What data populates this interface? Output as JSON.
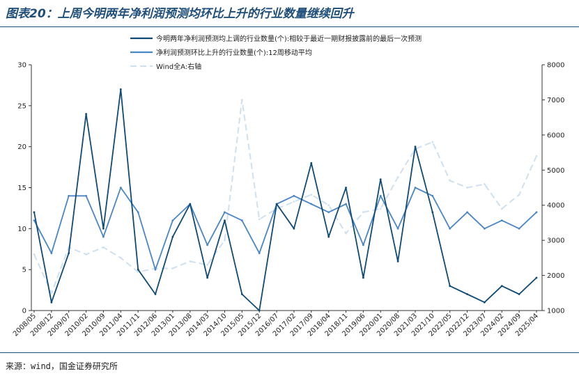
{
  "header": {
    "title": "图表20：上周今明两年净利润预测均环比上升的行业数量继续回升"
  },
  "footer": {
    "source": "来源：wind，国金证券研究所"
  },
  "colors": {
    "series1": "#0e4a75",
    "series2": "#4a86c5",
    "series3": "#cfe0ef",
    "title": "#1f4e79"
  },
  "chart_data": {
    "type": "line",
    "title": "",
    "xlabel": "",
    "ylabel": "",
    "y_left": {
      "lim": [
        0,
        30
      ],
      "ticks": [
        "0",
        "5",
        "10",
        "15",
        "20",
        "25",
        "30"
      ]
    },
    "y_right": {
      "lim": [
        1000,
        8000
      ],
      "ticks": [
        "1000",
        "2000",
        "3000",
        "4000",
        "5000",
        "6000",
        "7000",
        "8000"
      ]
    },
    "x_ticks": [
      "2008/05",
      "2008/12",
      "2009/07",
      "2010/02",
      "2010/09",
      "2011/04",
      "2011/11",
      "2012/06",
      "2013/01",
      "2013/08",
      "2014/03",
      "2014/10",
      "2015/05",
      "2015/12",
      "2016/07",
      "2017/02",
      "2017/09",
      "2018/04",
      "2018/11",
      "2019/06",
      "2020/01",
      "2020/08",
      "2021/03",
      "2021/10",
      "2022/05",
      "2022/12",
      "2023/07",
      "2024/02",
      "2024/09",
      "2025/04"
    ],
    "legend": {
      "placement": "top",
      "grid": false
    },
    "series": [
      {
        "name": "今明两年净利润预测均上调的行业数量(个):相较于最近一期财报披露前的最后一次预测",
        "axis": "left",
        "style": "solid",
        "x": [
          "2008/05",
          "2008/12",
          "2009/07",
          "2010/02",
          "2010/09",
          "2011/04",
          "2011/11",
          "2012/06",
          "2013/01",
          "2013/08",
          "2014/03",
          "2014/10",
          "2015/05",
          "2015/12",
          "2016/07",
          "2017/02",
          "2017/09",
          "2018/04",
          "2018/11",
          "2019/06",
          "2020/01",
          "2020/08",
          "2021/03",
          "2021/10",
          "2022/05",
          "2022/12",
          "2023/07",
          "2024/02",
          "2024/09",
          "2025/04"
        ],
        "values": [
          12,
          1,
          7,
          24,
          10,
          27,
          5,
          2,
          9,
          13,
          4,
          11,
          2,
          0,
          13,
          10,
          18,
          9,
          15,
          4,
          16,
          6,
          20,
          12,
          3,
          2,
          1,
          3,
          2,
          4
        ]
      },
      {
        "name": "净利润预测环比上升的行业数量(个):12周移动平均",
        "axis": "left",
        "style": "solid",
        "x": [
          "2008/05",
          "2008/12",
          "2009/07",
          "2010/02",
          "2010/09",
          "2011/04",
          "2011/11",
          "2012/06",
          "2013/01",
          "2013/08",
          "2014/03",
          "2014/10",
          "2015/05",
          "2015/12",
          "2016/07",
          "2017/02",
          "2017/09",
          "2018/04",
          "2018/11",
          "2019/06",
          "2020/01",
          "2020/08",
          "2021/03",
          "2021/10",
          "2022/05",
          "2022/12",
          "2023/07",
          "2024/02",
          "2024/09",
          "2025/04"
        ],
        "values": [
          11,
          7,
          14,
          14,
          9,
          15,
          12,
          5,
          11,
          13,
          8,
          12,
          11,
          7,
          13,
          14,
          13,
          12,
          13,
          8,
          14,
          10,
          15,
          14,
          10,
          12,
          10,
          11,
          10,
          12
        ]
      },
      {
        "name": "Wind全A:右轴",
        "axis": "right",
        "style": "dashed",
        "x": [
          "2008/05",
          "2008/12",
          "2009/07",
          "2010/02",
          "2010/09",
          "2011/04",
          "2011/11",
          "2012/06",
          "2013/01",
          "2013/08",
          "2014/03",
          "2014/10",
          "2015/05",
          "2015/12",
          "2016/07",
          "2017/02",
          "2017/09",
          "2018/04",
          "2018/11",
          "2019/06",
          "2020/01",
          "2020/08",
          "2021/03",
          "2021/10",
          "2022/05",
          "2022/12",
          "2023/07",
          "2024/02",
          "2024/09",
          "2025/04"
        ],
        "values": [
          2600,
          1500,
          2800,
          2600,
          2800,
          2500,
          2100,
          2200,
          2200,
          2400,
          2300,
          3000,
          7000,
          3600,
          3900,
          4100,
          4300,
          4000,
          3200,
          3800,
          3900,
          4800,
          5600,
          5800,
          4700,
          4500,
          4600,
          3900,
          4300,
          5400
        ]
      }
    ]
  }
}
